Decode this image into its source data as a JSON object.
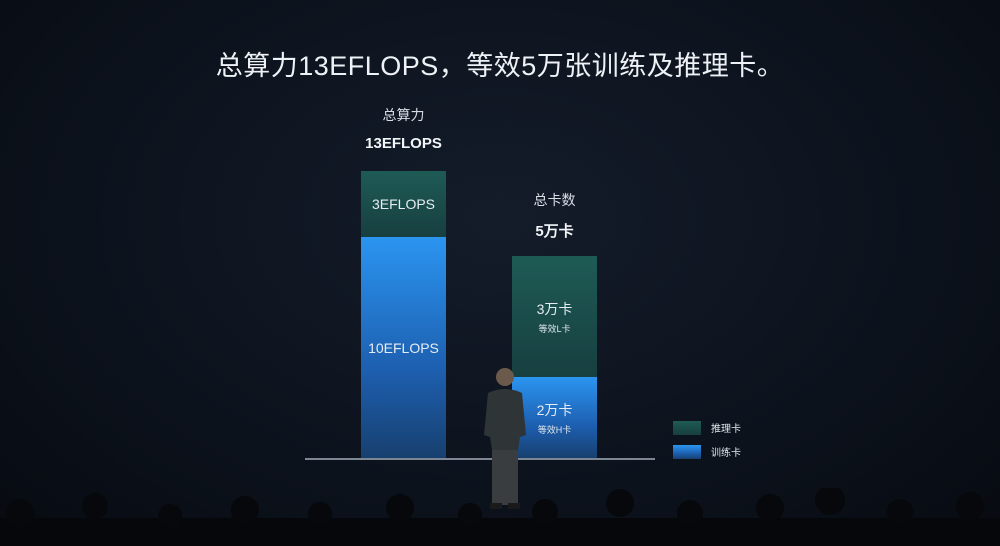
{
  "title": "总算力13EFLOPS，等效5万张训练及推理卡。",
  "chart_data": {
    "type": "bar",
    "stacked": true,
    "categories": [
      "总算力",
      "总卡数"
    ],
    "groups": [
      {
        "label": "总算力",
        "total_label": "13EFLOPS",
        "total": 13,
        "unit": "EFLOPS",
        "segments": [
          {
            "series": "训练卡",
            "value": 10,
            "label": "10EFLOPS",
            "sublabel": ""
          },
          {
            "series": "推理卡",
            "value": 3,
            "label": "3EFLOPS",
            "sublabel": ""
          }
        ]
      },
      {
        "label": "总卡数",
        "total_label": "5万卡",
        "total": 5,
        "unit": "万卡",
        "segments": [
          {
            "series": "训练卡",
            "value": 2,
            "label": "2万卡",
            "sublabel": "等效H卡"
          },
          {
            "series": "推理卡",
            "value": 3,
            "label": "3万卡",
            "sublabel": "等效L卡"
          }
        ]
      }
    ],
    "series": [
      {
        "name": "推理卡",
        "color": "#1e5b55"
      },
      {
        "name": "训练卡",
        "color": "#2b95f0"
      }
    ],
    "legend_position": "bottom-right",
    "grid": false
  }
}
